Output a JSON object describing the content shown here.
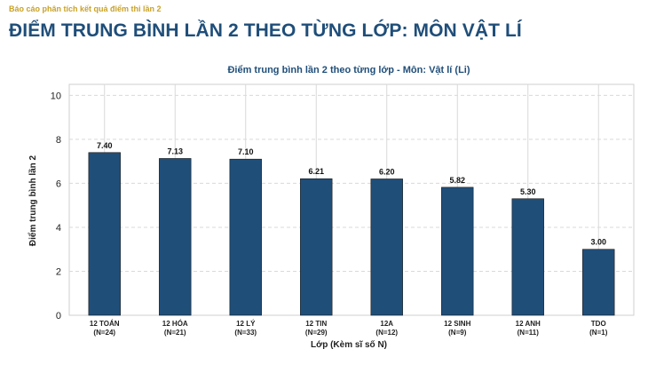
{
  "header": {
    "kicker": "Báo cáo phân tích kết quả điểm thi lần 2",
    "title": "ĐIỂM TRUNG BÌNH LẦN 2 THEO TỪNG LỚP: MÔN VẬT LÍ"
  },
  "chart_data": {
    "type": "bar",
    "title": "Điểm trung bình lần 2 theo từng lớp - Môn: Vật lí (Li)",
    "xlabel": "Lớp (Kèm sĩ số N)",
    "ylabel": "Điểm trung bình lần 2",
    "categories": [
      [
        "12 TOÁN",
        "(N=24)"
      ],
      [
        "12 HÓA",
        "(N=21)"
      ],
      [
        "12 LÝ",
        "(N=33)"
      ],
      [
        "12 TIN",
        "(N=29)"
      ],
      [
        "12A",
        "(N=12)"
      ],
      [
        "12 SINH",
        "(N=9)"
      ],
      [
        "12 ANH",
        "(N=11)"
      ],
      [
        "TDO",
        "(N=1)"
      ]
    ],
    "values": [
      7.4,
      7.13,
      7.1,
      6.21,
      6.2,
      5.82,
      5.3,
      3.0
    ],
    "value_labels": [
      "7.40",
      "7.13",
      "7.10",
      "6.21",
      "6.20",
      "5.82",
      "5.30",
      "3.00"
    ],
    "ylim": [
      0,
      10.5
    ],
    "yticks": [
      "0",
      "2",
      "4",
      "6",
      "8",
      "10"
    ],
    "ytick_values": [
      0,
      2,
      4,
      6,
      8,
      10
    ],
    "grid": true,
    "bar_color": "#1f4e79",
    "title_color": "#1f4e79",
    "kicker_color": "#c9a227"
  }
}
